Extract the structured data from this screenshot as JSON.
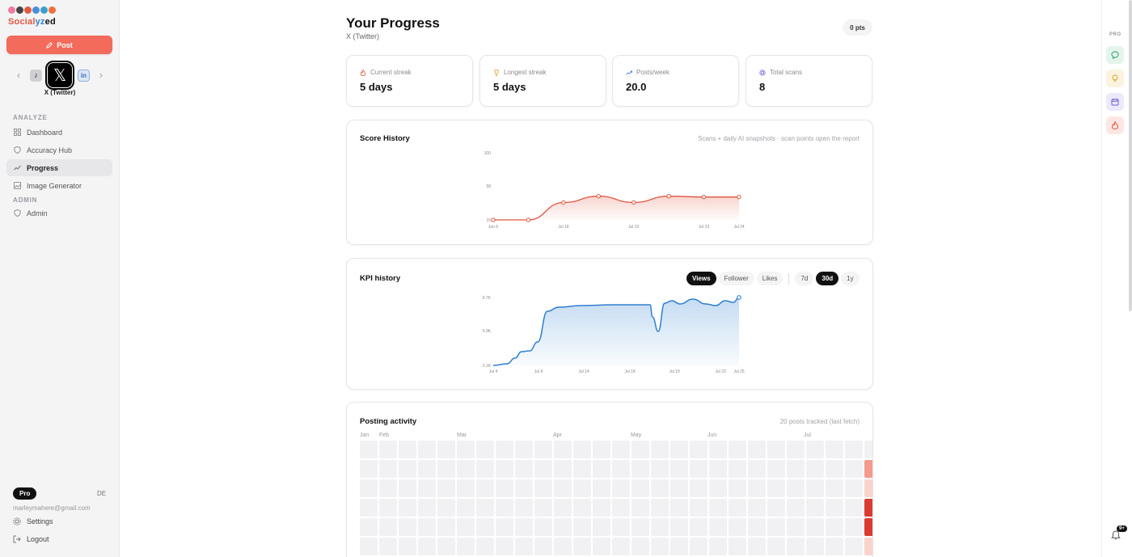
{
  "brand": {
    "name": "Socialyzed"
  },
  "sidebar": {
    "post_label": "Post",
    "platform_name": "X (Twitter)",
    "platform_x_glyph": "𝕏",
    "platform_tiktok_glyph": "♪",
    "platform_linkedin_glyph": "in",
    "sections": {
      "analyze": "ANALYZE",
      "admin": "ADMIN"
    },
    "items": [
      {
        "label": "Dashboard",
        "icon": "grid-icon"
      },
      {
        "label": "Accuracy Hub",
        "icon": "shield-icon"
      },
      {
        "label": "Progress",
        "icon": "trend-icon",
        "active": true
      },
      {
        "label": "Image Generator",
        "icon": "image-icon"
      },
      {
        "label": "Admin",
        "icon": "shield-icon"
      }
    ],
    "plan": "Pro",
    "language": "DE",
    "email": "marleymahere@gmail.com",
    "settings_label": "Settings",
    "logout_label": "Logout"
  },
  "header": {
    "title": "Your Progress",
    "subtitle": "X (Twitter)",
    "points": "0 pts"
  },
  "stats": [
    {
      "label": "Current streak",
      "value": "5 days",
      "icon": "flame-icon",
      "color": "#e2553f"
    },
    {
      "label": "Longest streak",
      "value": "5 days",
      "icon": "trophy-icon",
      "color": "#d9a21c"
    },
    {
      "label": "Posts/week",
      "value": "20.0",
      "icon": "trend-up-icon",
      "color": "#3b73d6"
    },
    {
      "label": "Total scans",
      "value": "8",
      "icon": "scan-icon",
      "color": "#7b6fd6"
    }
  ],
  "score_history": {
    "title": "Score History",
    "note": "Scans + daily AI snapshots · scan points open the report",
    "y_ticks": [
      "100",
      "58",
      "15"
    ],
    "x_ticks": [
      "Jun 6",
      "Jul 18",
      "Jul 22",
      "Jul 23",
      "Jul 24"
    ],
    "ylim": [
      15,
      100
    ],
    "values": [
      15,
      15,
      37,
      45,
      37,
      45,
      44,
      44
    ],
    "color": "#e2553f"
  },
  "kpi": {
    "title": "KPI history",
    "metrics": [
      "Views",
      "Follower",
      "Likes"
    ],
    "active_metric": "Views",
    "ranges": [
      "7d",
      "30d",
      "1y"
    ],
    "active_range": "30d",
    "y_ticks": [
      "9.7K",
      "5.9K",
      "2.1K"
    ],
    "x_ticks": [
      "Jul 4",
      "Jul 9",
      "Jul 14",
      "Jul 18",
      "Jul 19",
      "Jul 23",
      "Jul 25"
    ],
    "color": "#2f7fd1"
  },
  "activity": {
    "title": "Posting activity",
    "note": "20 posts tracked (last fetch)",
    "months": [
      "Jan",
      "Feb",
      "Mar",
      "Apr",
      "May",
      "Jun",
      "Jul"
    ],
    "highlight_cells": [
      {
        "col": 26,
        "row": 1,
        "level": 2
      },
      {
        "col": 26,
        "row": 2,
        "level": 1
      },
      {
        "col": 26,
        "row": 3,
        "level": 3
      },
      {
        "col": 26,
        "row": 4,
        "level": 3
      },
      {
        "col": 26,
        "row": 5,
        "level": 1
      }
    ],
    "level_colors": [
      "#f1f1f3",
      "#fbd3cd",
      "#f49a8d",
      "#da3b30"
    ]
  },
  "rail": {
    "pro_label": "PRO",
    "buttons": [
      {
        "icon": "chat-icon",
        "bg": "#e3f5ec",
        "fg": "#2e9b6a"
      },
      {
        "icon": "bulb-icon",
        "bg": "#fbf3df",
        "fg": "#d8a31f"
      },
      {
        "icon": "calendar-icon",
        "bg": "#ece9fb",
        "fg": "#6d5fd3"
      },
      {
        "icon": "flame-icon",
        "bg": "#fde6e3",
        "fg": "#e2553f"
      }
    ],
    "notifications": "9+"
  }
}
